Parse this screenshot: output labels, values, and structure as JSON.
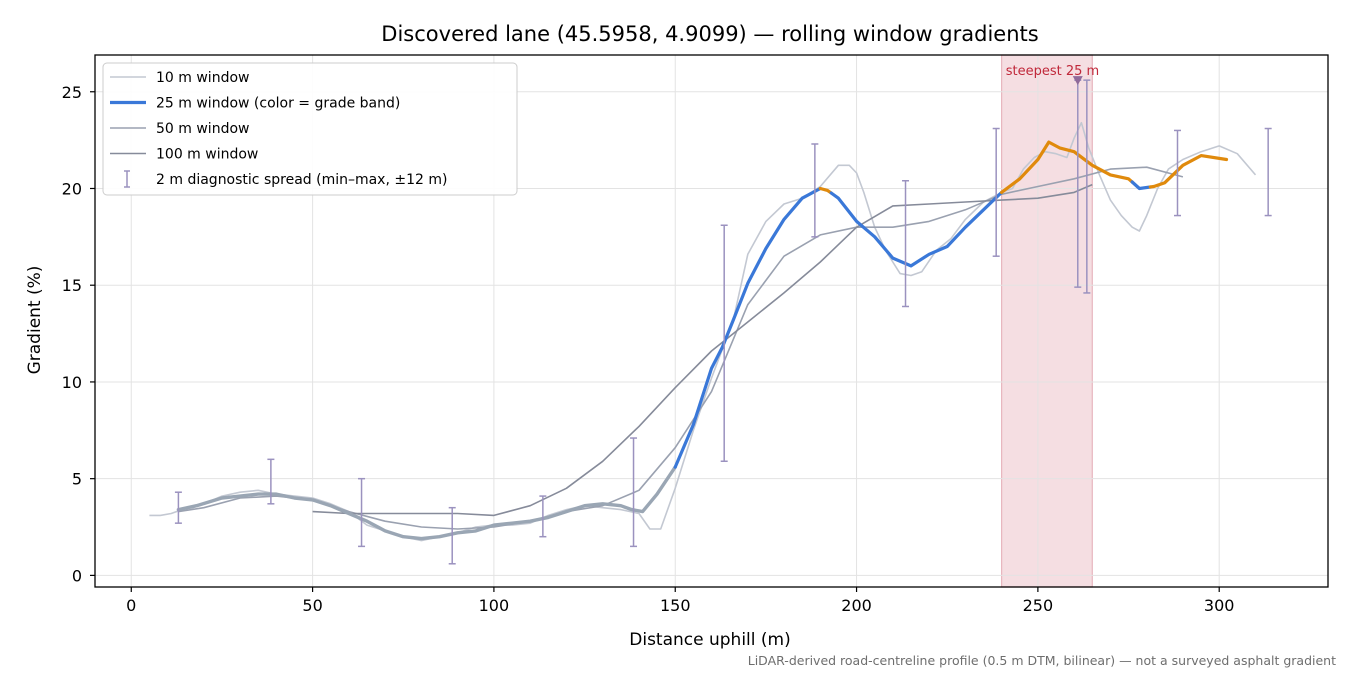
{
  "chart_data": {
    "type": "line",
    "title": "Discovered lane (45.5958, 4.9099) — rolling window gradients",
    "xlabel": "Distance uphill (m)",
    "ylabel": "Gradient (%)",
    "xlim": [
      -10,
      330
    ],
    "ylim": [
      -0.6,
      26.9
    ],
    "xticks": [
      0,
      50,
      100,
      150,
      200,
      250,
      300
    ],
    "yticks": [
      0,
      5,
      10,
      15,
      20,
      25
    ],
    "grid": true,
    "legend_position": "top-left",
    "footnote": "LiDAR-derived road-centreline profile (0.5 m DTM, bilinear) — not a surveyed asphalt gradient",
    "colors": {
      "w10": "#c3c8d2",
      "w25_gray": "#9aa6b4",
      "w25_blue": "#3a78d8",
      "w25_orange": "#e08a0c",
      "w50": "#9aa1b0",
      "w100": "#868b9a",
      "errorbar": "#9b92bf",
      "highlight": "#e8b6be",
      "annotation": "#c0283a"
    },
    "highlight_band": {
      "x_range": [
        240,
        265
      ]
    },
    "annotation": {
      "text": "steepest 25 m",
      "x": 261,
      "y": 25.6
    },
    "series": [
      {
        "name": "10 m window",
        "x": [
          5,
          8,
          11,
          14,
          17,
          20,
          25,
          30,
          35,
          40,
          45,
          50,
          55,
          60,
          65,
          70,
          75,
          80,
          85,
          90,
          95,
          100,
          105,
          110,
          115,
          120,
          125,
          130,
          135,
          140,
          143,
          146,
          150,
          155,
          160,
          163,
          166,
          170,
          175,
          180,
          185,
          190,
          195,
          198,
          200,
          202,
          205,
          208,
          210,
          212,
          215,
          218,
          222,
          226,
          230,
          235,
          240,
          243,
          246,
          249,
          252,
          255,
          258,
          260,
          262,
          264,
          267,
          270,
          273,
          276,
          278,
          280,
          283,
          286,
          290,
          295,
          300,
          305,
          310
        ],
        "values": [
          3.1,
          3.1,
          3.2,
          3.4,
          3.5,
          3.7,
          4.1,
          4.3,
          4.4,
          4.2,
          4.1,
          4.0,
          3.7,
          3.3,
          2.6,
          2.3,
          2.0,
          1.8,
          2.0,
          2.2,
          2.5,
          2.6,
          2.6,
          2.7,
          3.1,
          3.4,
          3.6,
          3.5,
          3.4,
          3.2,
          2.4,
          2.4,
          4.5,
          7.5,
          10.2,
          11.7,
          13.2,
          16.6,
          18.3,
          19.2,
          19.5,
          20.1,
          21.2,
          21.2,
          20.8,
          19.8,
          18.0,
          16.8,
          16.2,
          15.6,
          15.5,
          15.7,
          16.8,
          17.4,
          18.4,
          19.3,
          19.8,
          20.0,
          21.0,
          21.6,
          21.9,
          21.8,
          21.6,
          22.6,
          23.4,
          22.1,
          20.7,
          19.4,
          18.6,
          18.0,
          17.8,
          18.6,
          20.0,
          21.0,
          21.5,
          21.9,
          22.2,
          21.8,
          20.7
        ]
      },
      {
        "name": "25 m window (color = grade band)",
        "x": [
          13,
          18,
          25,
          30,
          35,
          40,
          45,
          50,
          55,
          60,
          65,
          70,
          75,
          80,
          85,
          90,
          95,
          100,
          105,
          110,
          115,
          120,
          125,
          130,
          135,
          138,
          141,
          145,
          150,
          155,
          160,
          163,
          166,
          170,
          175,
          180,
          185,
          190,
          192,
          195,
          200,
          205,
          210,
          215,
          220,
          225,
          230,
          235,
          240,
          245,
          250,
          253,
          256,
          260,
          265,
          270,
          275,
          278,
          282,
          285,
          290,
          295,
          302
        ],
        "values": [
          3.4,
          3.6,
          4.0,
          4.1,
          4.2,
          4.2,
          4.0,
          3.9,
          3.6,
          3.2,
          2.8,
          2.3,
          2.0,
          1.9,
          2.0,
          2.2,
          2.3,
          2.6,
          2.7,
          2.8,
          3.0,
          3.3,
          3.6,
          3.7,
          3.6,
          3.4,
          3.3,
          4.2,
          5.6,
          7.8,
          10.7,
          11.8,
          13.2,
          15.1,
          16.9,
          18.4,
          19.5,
          20.0,
          19.9,
          19.5,
          18.3,
          17.5,
          16.4,
          16.0,
          16.6,
          17.0,
          18.0,
          18.9,
          19.8,
          20.5,
          21.5,
          22.4,
          22.1,
          21.9,
          21.2,
          20.7,
          20.5,
          20.0,
          20.1,
          20.3,
          21.2,
          21.7,
          21.5
        ],
        "bands": [
          [
            0,
            150,
            "gray"
          ],
          [
            150,
            190,
            "blue"
          ],
          [
            190,
            193,
            "orange"
          ],
          [
            193,
            240,
            "blue"
          ],
          [
            240,
            276,
            "orange"
          ],
          [
            276,
            281,
            "blue"
          ],
          [
            281,
            303,
            "orange"
          ]
        ]
      },
      {
        "name": "50 m window",
        "x": [
          13,
          20,
          30,
          40,
          50,
          60,
          70,
          80,
          90,
          100,
          110,
          120,
          130,
          140,
          150,
          160,
          170,
          180,
          190,
          200,
          210,
          220,
          230,
          240,
          250,
          260,
          270,
          280,
          290
        ],
        "values": [
          3.3,
          3.5,
          4.0,
          4.1,
          3.9,
          3.3,
          2.8,
          2.5,
          2.4,
          2.5,
          2.8,
          3.3,
          3.6,
          4.4,
          6.6,
          9.5,
          14.0,
          16.5,
          17.6,
          18.0,
          18.0,
          18.3,
          18.9,
          19.7,
          20.1,
          20.5,
          21.0,
          21.1,
          20.6
        ]
      },
      {
        "name": "100 m window",
        "x": [
          50,
          60,
          70,
          80,
          90,
          100,
          110,
          120,
          130,
          140,
          150,
          160,
          170,
          180,
          190,
          200,
          210,
          220,
          230,
          240,
          250,
          260,
          265
        ],
        "values": [
          3.3,
          3.2,
          3.2,
          3.2,
          3.2,
          3.1,
          3.6,
          4.5,
          5.9,
          7.7,
          9.7,
          11.6,
          13.1,
          14.6,
          16.2,
          18.0,
          19.1,
          19.2,
          19.3,
          19.4,
          19.5,
          19.8,
          20.2
        ]
      }
    ],
    "errorbars": {
      "name": "2 m diagnostic spread (min–max, ±12 m)",
      "x": [
        13,
        38.5,
        63.5,
        88.5,
        113.5,
        138.5,
        163.5,
        188.5,
        213.5,
        238.5,
        263.5,
        288.5,
        313.5
      ],
      "min": [
        2.7,
        3.7,
        1.5,
        0.6,
        2.0,
        1.5,
        5.9,
        17.5,
        13.9,
        16.5,
        14.6,
        18.6,
        18.6
      ],
      "max": [
        4.3,
        6.0,
        5.0,
        3.5,
        4.1,
        7.1,
        18.1,
        22.3,
        20.4,
        23.1,
        25.6,
        23.0,
        23.1
      ]
    },
    "extra_errorbar": {
      "x": 261,
      "min": 14.9,
      "max": 25.6
    }
  }
}
